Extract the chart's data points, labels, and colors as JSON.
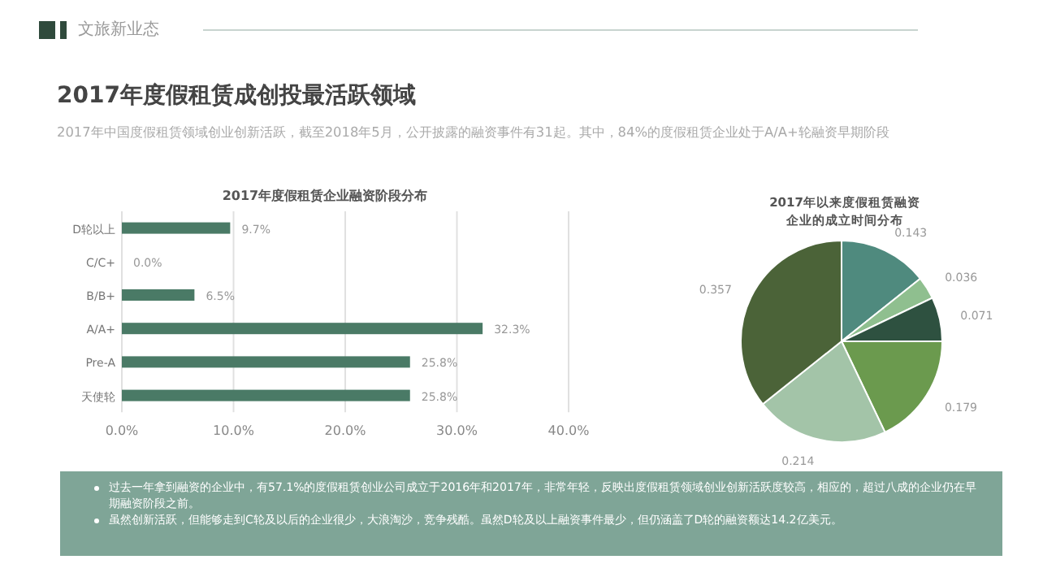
{
  "chart_data": [
    {
      "type": "other",
      "title": "2017年度假租赁成创投最活跃领域",
      "subtitle": "2017年中国度假租赁领域创业创新活跃，截至2018年5月，公开披露的融资事件有31起。其中，84%的度假租赁企业处于A/A+轮融资早期阶段",
      "annotations": [
        "文旅新业态",
        "过去一年拿到融资的企业中，有57.1%的度假租赁创业公司成立于2016年和2017年，非常年轻，反映出度假租赁领域创业创新活跃度较高，相应的，超过八成的企业仍在早期融资阶段之前。",
        "虽然创新活跃，但能够走到C轮及以后的企业很少，大浪淘沙，竞争残酷。虽然D轮及以上融资事件最少，但仍涵盖了D轮的融资额达14.2亿美元。"
      ]
    },
    {
      "type": "bar",
      "orientation": "horizontal",
      "title": "2017年度假租赁企业融资阶段分布",
      "categories": [
        "D轮以上",
        "C/C+",
        "B/B+",
        "A/A+",
        "Pre-A",
        "天使轮"
      ],
      "values": [
        9.7,
        0,
        6.5,
        32.3,
        25.8,
        25.8
      ],
      "value_labels": [
        "9.7%",
        "0.0%",
        "6.5%",
        "32.3%",
        "25.8%",
        "25.8%"
      ],
      "color": "#4a7a66",
      "xlim": [
        0,
        40
      ],
      "xticks": [
        {
          "value": 0,
          "label": "0.0%"
        },
        {
          "value": 10,
          "label": "10.0%"
        },
        {
          "value": 20,
          "label": "20.0%"
        },
        {
          "value": 30,
          "label": "30.0%"
        },
        {
          "value": 40,
          "label": "40.0%"
        }
      ],
      "grid": "x"
    },
    {
      "type": "pie",
      "title": "2017年以来度假租赁融资企业的成立时间分布",
      "categories": [
        null,
        null,
        null,
        null,
        null,
        null
      ],
      "values": [
        0.143,
        0.036,
        0.071,
        0.179,
        0.214,
        0.357
      ],
      "colors": [
        "#4f8a7e",
        "#8fbf8f",
        "#2e5140",
        "#6b9a4e",
        "#a3c4a8",
        "#4b6338"
      ],
      "data_labels": true
    }
  ]
}
